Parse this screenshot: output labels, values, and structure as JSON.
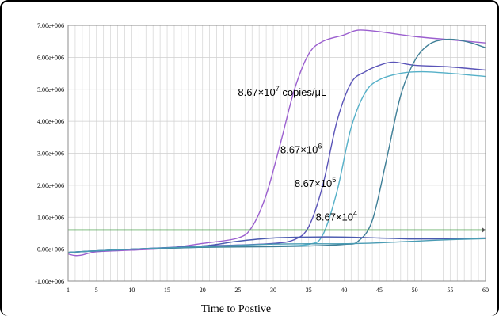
{
  "chart_data": {
    "type": "line",
    "title": "",
    "xlabel": "Time to Postive",
    "ylabel": "",
    "xlim": [
      1,
      60
    ],
    "ylim": [
      -1000000,
      7000000
    ],
    "x_ticks": [
      1,
      5,
      10,
      15,
      20,
      25,
      30,
      35,
      40,
      45,
      50,
      55,
      60
    ],
    "x_tick_labels": [
      "1",
      "5",
      "10",
      "15",
      "20",
      "25",
      "30",
      "35",
      "40",
      "45",
      "50",
      "55",
      "60"
    ],
    "y_ticks": [
      -1000000,
      0,
      1000000,
      2000000,
      3000000,
      4000000,
      5000000,
      6000000,
      7000000
    ],
    "y_tick_labels": [
      "-1.00e+006",
      "0.00e+006",
      "1.00e+006",
      "2.00e+006",
      "3.00e+006",
      "4.00e+006",
      "5.00e+006",
      "6.00e+006",
      "7.00e+006"
    ],
    "grid": true,
    "threshold": {
      "value": 600000,
      "color": "#3c9a3c"
    },
    "annotations": [
      {
        "base": "8.67×10",
        "exp": "7",
        "suffix": "  copies/μL",
        "x": 25,
        "y": 4800000
      },
      {
        "base": "8.67×10",
        "exp": "6",
        "suffix": "",
        "x": 31,
        "y": 3000000
      },
      {
        "base": "8.67×10",
        "exp": "5",
        "suffix": "",
        "x": 33,
        "y": 1950000
      },
      {
        "base": "8.67×10",
        "exp": "4",
        "suffix": "",
        "x": 36,
        "y": 900000
      }
    ],
    "series": [
      {
        "color": "#9b5fcf",
        "points": [
          [
            1,
            -150000
          ],
          [
            2,
            -200000
          ],
          [
            3,
            -180000
          ],
          [
            5,
            -80000
          ],
          [
            10,
            -30000
          ],
          [
            15,
            30000
          ],
          [
            20,
            180000
          ],
          [
            25,
            350000
          ],
          [
            27,
            700000
          ],
          [
            29,
            1700000
          ],
          [
            31,
            3300000
          ],
          [
            33,
            5000000
          ],
          [
            35,
            6100000
          ],
          [
            37,
            6500000
          ],
          [
            40,
            6700000
          ],
          [
            42,
            6850000
          ],
          [
            45,
            6800000
          ],
          [
            50,
            6650000
          ],
          [
            55,
            6550000
          ],
          [
            60,
            6450000
          ]
        ]
      },
      {
        "color": "#5a54b8",
        "points": [
          [
            1,
            -100000
          ],
          [
            5,
            -50000
          ],
          [
            10,
            0
          ],
          [
            15,
            50000
          ],
          [
            20,
            100000
          ],
          [
            25,
            130000
          ],
          [
            30,
            180000
          ],
          [
            33,
            300000
          ],
          [
            35,
            700000
          ],
          [
            37,
            2000000
          ],
          [
            39,
            4000000
          ],
          [
            41,
            5200000
          ],
          [
            43,
            5550000
          ],
          [
            45,
            5750000
          ],
          [
            47,
            5850000
          ],
          [
            50,
            5750000
          ],
          [
            55,
            5700000
          ],
          [
            60,
            5600000
          ]
        ]
      },
      {
        "color": "#55b0c8",
        "points": [
          [
            1,
            -100000
          ],
          [
            5,
            -50000
          ],
          [
            10,
            0
          ],
          [
            15,
            30000
          ],
          [
            20,
            60000
          ],
          [
            25,
            80000
          ],
          [
            30,
            100000
          ],
          [
            35,
            150000
          ],
          [
            37,
            450000
          ],
          [
            39,
            1800000
          ],
          [
            41,
            3800000
          ],
          [
            43,
            4900000
          ],
          [
            45,
            5300000
          ],
          [
            48,
            5500000
          ],
          [
            51,
            5550000
          ],
          [
            55,
            5500000
          ],
          [
            60,
            5400000
          ]
        ]
      },
      {
        "color": "#3f7f97",
        "points": [
          [
            1,
            -100000
          ],
          [
            5,
            -50000
          ],
          [
            10,
            0
          ],
          [
            15,
            30000
          ],
          [
            20,
            60000
          ],
          [
            25,
            70000
          ],
          [
            30,
            80000
          ],
          [
            35,
            100000
          ],
          [
            40,
            150000
          ],
          [
            42,
            250000
          ],
          [
            44,
            900000
          ],
          [
            46,
            2800000
          ],
          [
            48,
            4800000
          ],
          [
            50,
            5900000
          ],
          [
            52,
            6400000
          ],
          [
            54,
            6550000
          ],
          [
            56,
            6550000
          ],
          [
            58,
            6450000
          ],
          [
            60,
            6300000
          ]
        ]
      },
      {
        "color": "#4a5ab0",
        "points": [
          [
            1,
            -100000
          ],
          [
            10,
            0
          ],
          [
            20,
            100000
          ],
          [
            25,
            250000
          ],
          [
            30,
            350000
          ],
          [
            35,
            380000
          ],
          [
            40,
            380000
          ],
          [
            45,
            350000
          ],
          [
            50,
            320000
          ],
          [
            55,
            330000
          ],
          [
            60,
            350000
          ]
        ]
      },
      {
        "color": "#4a9cb4",
        "points": [
          [
            1,
            -100000
          ],
          [
            10,
            0
          ],
          [
            20,
            80000
          ],
          [
            25,
            120000
          ],
          [
            30,
            160000
          ],
          [
            35,
            170000
          ],
          [
            40,
            170000
          ],
          [
            45,
            200000
          ],
          [
            50,
            250000
          ],
          [
            55,
            300000
          ],
          [
            60,
            330000
          ]
        ]
      }
    ]
  }
}
